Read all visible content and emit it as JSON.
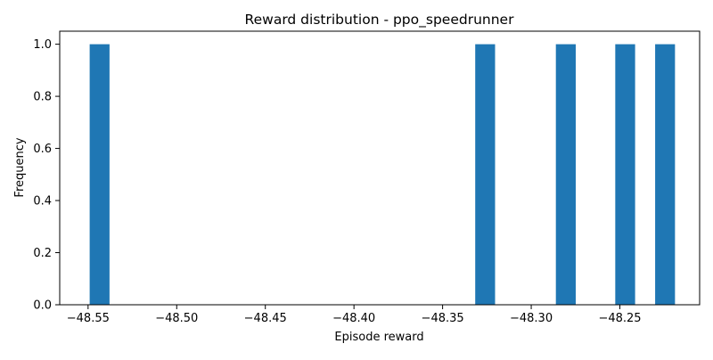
{
  "chart_data": {
    "type": "bar",
    "title": "Reward distribution - ppo_speedrunner",
    "xlabel": "Episode reward",
    "ylabel": "Frequency",
    "xlim": [
      -48.566,
      -48.205
    ],
    "ylim": [
      0,
      1.05
    ],
    "grid": false,
    "bar_color": "#1f77b4",
    "bin_width": 0.0112,
    "x_ticks": [
      {
        "value": -48.55,
        "label": "−48.55"
      },
      {
        "value": -48.5,
        "label": "−48.50"
      },
      {
        "value": -48.45,
        "label": "−48.45"
      },
      {
        "value": -48.4,
        "label": "−48.40"
      },
      {
        "value": -48.35,
        "label": "−48.35"
      },
      {
        "value": -48.3,
        "label": "−48.30"
      },
      {
        "value": -48.25,
        "label": "−48.25"
      }
    ],
    "y_ticks": [
      {
        "value": 0.0,
        "label": "0.0"
      },
      {
        "value": 0.2,
        "label": "0.2"
      },
      {
        "value": 0.4,
        "label": "0.4"
      },
      {
        "value": 0.6,
        "label": "0.6"
      },
      {
        "value": 0.8,
        "label": "0.8"
      },
      {
        "value": 1.0,
        "label": "1.0"
      }
    ],
    "bars": [
      {
        "x": -48.5435,
        "count": 1
      },
      {
        "x": -48.326,
        "count": 1
      },
      {
        "x": -48.2805,
        "count": 1
      },
      {
        "x": -48.247,
        "count": 1
      },
      {
        "x": -48.2245,
        "count": 1
      }
    ]
  }
}
